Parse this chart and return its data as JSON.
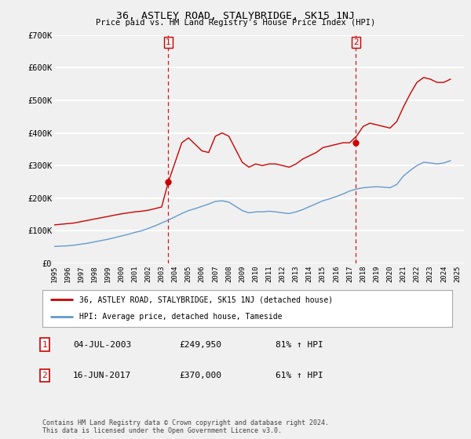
{
  "title": "36, ASTLEY ROAD, STALYBRIDGE, SK15 1NJ",
  "subtitle": "Price paid vs. HM Land Registry's House Price Index (HPI)",
  "legend_line1": "36, ASTLEY ROAD, STALYBRIDGE, SK15 1NJ (detached house)",
  "legend_line2": "HPI: Average price, detached house, Tameside",
  "transaction1_label": "1",
  "transaction1_date": "04-JUL-2003",
  "transaction1_price": "£249,950",
  "transaction1_hpi": "81% ↑ HPI",
  "transaction1_year": 2003.5,
  "transaction2_label": "2",
  "transaction2_date": "16-JUN-2017",
  "transaction2_price": "£370,000",
  "transaction2_hpi": "61% ↑ HPI",
  "transaction2_year": 2017.45,
  "ylim": [
    0,
    700000
  ],
  "xlim": [
    1995,
    2025.5
  ],
  "yticks": [
    0,
    100000,
    200000,
    300000,
    400000,
    500000,
    600000,
    700000
  ],
  "ytick_labels": [
    "£0",
    "£100K",
    "£200K",
    "£300K",
    "£400K",
    "£500K",
    "£600K",
    "£700K"
  ],
  "xticks": [
    1995,
    1996,
    1997,
    1998,
    1999,
    2000,
    2001,
    2002,
    2003,
    2004,
    2005,
    2006,
    2007,
    2008,
    2009,
    2010,
    2011,
    2012,
    2013,
    2014,
    2015,
    2016,
    2017,
    2018,
    2019,
    2020,
    2021,
    2022,
    2023,
    2024,
    2025
  ],
  "red_color": "#cc0000",
  "blue_color": "#6699cc",
  "dashed_color": "#cc0000",
  "bg_color": "#f0f0f0",
  "grid_color": "#ffffff",
  "footnote": "Contains HM Land Registry data © Crown copyright and database right 2024.\nThis data is licensed under the Open Government Licence v3.0.",
  "red_x": [
    1995.0,
    1995.5,
    1996.0,
    1996.5,
    1997.0,
    1997.5,
    1998.0,
    1998.5,
    1999.0,
    1999.5,
    2000.0,
    2000.5,
    2001.0,
    2001.5,
    2002.0,
    2002.5,
    2003.0,
    2003.5,
    2004.0,
    2004.5,
    2005.0,
    2005.5,
    2006.0,
    2006.5,
    2007.0,
    2007.5,
    2008.0,
    2008.5,
    2009.0,
    2009.5,
    2010.0,
    2010.5,
    2011.0,
    2011.5,
    2012.0,
    2012.5,
    2013.0,
    2013.5,
    2014.0,
    2014.5,
    2015.0,
    2015.5,
    2016.0,
    2016.5,
    2017.0,
    2017.5,
    2018.0,
    2018.5,
    2019.0,
    2019.5,
    2020.0,
    2020.5,
    2021.0,
    2021.5,
    2022.0,
    2022.5,
    2023.0,
    2023.5,
    2024.0,
    2024.5
  ],
  "red_y": [
    118000,
    120000,
    122000,
    124000,
    128000,
    132000,
    136000,
    140000,
    144000,
    148000,
    152000,
    155000,
    158000,
    160000,
    163000,
    168000,
    173000,
    249950,
    310000,
    370000,
    385000,
    365000,
    345000,
    340000,
    390000,
    400000,
    390000,
    350000,
    310000,
    295000,
    305000,
    300000,
    305000,
    305000,
    300000,
    295000,
    305000,
    320000,
    330000,
    340000,
    355000,
    360000,
    365000,
    370000,
    370000,
    390000,
    420000,
    430000,
    425000,
    420000,
    415000,
    435000,
    480000,
    520000,
    555000,
    570000,
    565000,
    555000,
    555000,
    565000
  ],
  "blue_x": [
    1995.0,
    1995.5,
    1996.0,
    1996.5,
    1997.0,
    1997.5,
    1998.0,
    1998.5,
    1999.0,
    1999.5,
    2000.0,
    2000.5,
    2001.0,
    2001.5,
    2002.0,
    2002.5,
    2003.0,
    2003.5,
    2004.0,
    2004.5,
    2005.0,
    2005.5,
    2006.0,
    2006.5,
    2007.0,
    2007.5,
    2008.0,
    2008.5,
    2009.0,
    2009.5,
    2010.0,
    2010.5,
    2011.0,
    2011.5,
    2012.0,
    2012.5,
    2013.0,
    2013.5,
    2014.0,
    2014.5,
    2015.0,
    2015.5,
    2016.0,
    2016.5,
    2017.0,
    2017.5,
    2018.0,
    2018.5,
    2019.0,
    2019.5,
    2020.0,
    2020.5,
    2021.0,
    2021.5,
    2022.0,
    2022.5,
    2023.0,
    2023.5,
    2024.0,
    2024.5
  ],
  "blue_y": [
    52000,
    53000,
    54000,
    56000,
    59000,
    62000,
    66000,
    70000,
    74000,
    79000,
    84000,
    89000,
    95000,
    100000,
    107000,
    115000,
    124000,
    133000,
    143000,
    153000,
    162000,
    168000,
    175000,
    182000,
    190000,
    192000,
    188000,
    175000,
    162000,
    155000,
    158000,
    158000,
    160000,
    158000,
    155000,
    153000,
    158000,
    165000,
    174000,
    183000,
    192000,
    198000,
    205000,
    213000,
    222000,
    228000,
    232000,
    234000,
    235000,
    234000,
    232000,
    242000,
    268000,
    285000,
    300000,
    310000,
    308000,
    305000,
    308000,
    315000
  ]
}
